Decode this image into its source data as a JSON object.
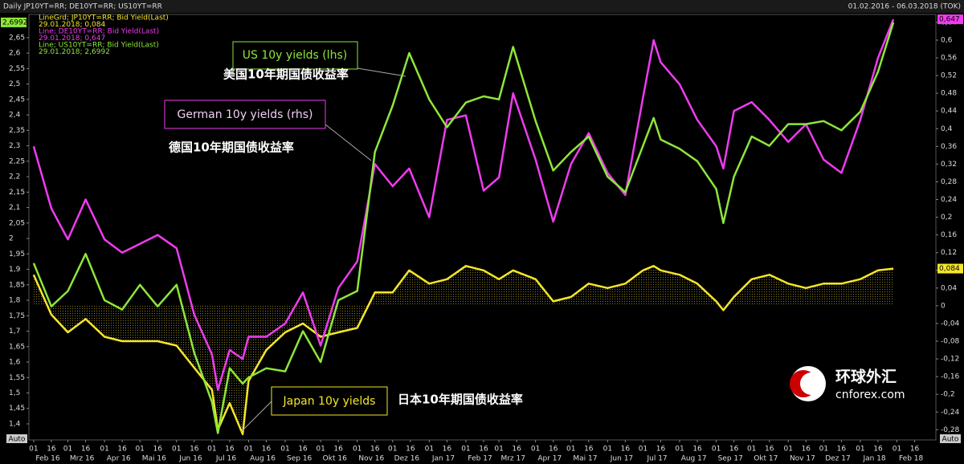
{
  "chart_data": {
    "type": "line",
    "title": "Daily JP10YT=RR; DE10YT=RR; US10YT=RR",
    "subtitle": "01.02.2016 - 06.03.2018 (TOK)",
    "x": [
      "2016-02-01",
      "2016-02-16",
      "2016-03-01",
      "2016-03-16",
      "2016-04-01",
      "2016-04-16",
      "2016-05-01",
      "2016-05-16",
      "2016-06-01",
      "2016-06-16",
      "2016-07-01",
      "2016-07-06",
      "2016-07-16",
      "2016-07-27",
      "2016-08-01",
      "2016-08-16",
      "2016-09-01",
      "2016-09-16",
      "2016-10-01",
      "2016-10-16",
      "2016-11-01",
      "2016-11-16",
      "2016-12-01",
      "2016-12-15",
      "2017-01-01",
      "2017-01-16",
      "2017-02-01",
      "2017-02-16",
      "2017-03-01",
      "2017-03-13",
      "2017-04-01",
      "2017-04-16",
      "2017-05-01",
      "2017-05-16",
      "2017-06-01",
      "2017-06-16",
      "2017-07-01",
      "2017-07-10",
      "2017-07-16",
      "2017-08-01",
      "2017-08-16",
      "2017-09-01",
      "2017-09-07",
      "2017-09-16",
      "2017-10-01",
      "2017-10-16",
      "2017-11-01",
      "2017-11-16",
      "2017-12-01",
      "2017-12-16",
      "2018-01-01",
      "2018-01-16",
      "2018-01-29"
    ],
    "xlim": [
      "2016-01-28",
      "2018-03-06"
    ],
    "xticks": [
      {
        "value": "2016-02-01",
        "label": "01"
      },
      {
        "value": "2016-02-16",
        "label": "16"
      },
      {
        "value": "2016-03-01",
        "label": "01"
      },
      {
        "value": "2016-03-16",
        "label": "16"
      },
      {
        "value": "2016-04-01",
        "label": "01"
      },
      {
        "value": "2016-04-16",
        "label": "16"
      },
      {
        "value": "2016-05-01",
        "label": "01"
      },
      {
        "value": "2016-05-16",
        "label": "16"
      },
      {
        "value": "2016-06-01",
        "label": "01"
      },
      {
        "value": "2016-06-16",
        "label": "16"
      },
      {
        "value": "2016-07-01",
        "label": "01"
      },
      {
        "value": "2016-07-16",
        "label": "16"
      },
      {
        "value": "2016-08-01",
        "label": "01"
      },
      {
        "value": "2016-08-16",
        "label": "16"
      },
      {
        "value": "2016-09-01",
        "label": "01"
      },
      {
        "value": "2016-09-16",
        "label": "16"
      },
      {
        "value": "2016-10-01",
        "label": "01"
      },
      {
        "value": "2016-10-16",
        "label": "16"
      },
      {
        "value": "2016-11-01",
        "label": "01"
      },
      {
        "value": "2016-11-16",
        "label": "16"
      },
      {
        "value": "2016-12-01",
        "label": "01"
      },
      {
        "value": "2016-12-16",
        "label": "16"
      },
      {
        "value": "2017-01-01",
        "label": "01"
      },
      {
        "value": "2017-01-16",
        "label": "16"
      },
      {
        "value": "2017-02-01",
        "label": "01"
      },
      {
        "value": "2017-02-16",
        "label": "16"
      },
      {
        "value": "2017-03-01",
        "label": "01"
      },
      {
        "value": "2017-03-16",
        "label": "16"
      },
      {
        "value": "2017-04-01",
        "label": "01"
      },
      {
        "value": "2017-04-16",
        "label": "16"
      },
      {
        "value": "2017-05-01",
        "label": "01"
      },
      {
        "value": "2017-05-16",
        "label": "16"
      },
      {
        "value": "2017-06-01",
        "label": "01"
      },
      {
        "value": "2017-06-16",
        "label": "16"
      },
      {
        "value": "2017-07-01",
        "label": "01"
      },
      {
        "value": "2017-07-16",
        "label": "16"
      },
      {
        "value": "2017-08-01",
        "label": "01"
      },
      {
        "value": "2017-08-16",
        "label": "16"
      },
      {
        "value": "2017-09-01",
        "label": "01"
      },
      {
        "value": "2017-09-16",
        "label": "16"
      },
      {
        "value": "2017-10-01",
        "label": "01"
      },
      {
        "value": "2017-10-16",
        "label": "16"
      },
      {
        "value": "2017-11-01",
        "label": "01"
      },
      {
        "value": "2017-11-16",
        "label": "16"
      },
      {
        "value": "2017-12-01",
        "label": "01"
      },
      {
        "value": "2017-12-16",
        "label": "16"
      },
      {
        "value": "2018-01-01",
        "label": "01"
      },
      {
        "value": "2018-01-16",
        "label": "16"
      },
      {
        "value": "2018-02-01",
        "label": "01"
      },
      {
        "value": "2018-02-16",
        "label": "16"
      }
    ],
    "month_labels": [
      {
        "value": "2016-02-13",
        "label": "Feb 16"
      },
      {
        "value": "2016-03-13",
        "label": "Mrz 16"
      },
      {
        "value": "2016-04-13",
        "label": "Apr 16"
      },
      {
        "value": "2016-05-13",
        "label": "Mai 16"
      },
      {
        "value": "2016-06-13",
        "label": "Jun 16"
      },
      {
        "value": "2016-07-13",
        "label": "Jul 16"
      },
      {
        "value": "2016-08-13",
        "label": "Aug 16"
      },
      {
        "value": "2016-09-13",
        "label": "Sep 16"
      },
      {
        "value": "2016-10-13",
        "label": "Okt 16"
      },
      {
        "value": "2016-11-13",
        "label": "Nov 16"
      },
      {
        "value": "2016-12-13",
        "label": "Dez 16"
      },
      {
        "value": "2017-01-13",
        "label": "Jan 17"
      },
      {
        "value": "2017-02-13",
        "label": "Feb 17"
      },
      {
        "value": "2017-03-13",
        "label": "Mrz 17"
      },
      {
        "value": "2017-04-13",
        "label": "Apr 17"
      },
      {
        "value": "2017-05-13",
        "label": "Mai 17"
      },
      {
        "value": "2017-06-13",
        "label": "Jun 17"
      },
      {
        "value": "2017-07-13",
        "label": "Jul 17"
      },
      {
        "value": "2017-08-13",
        "label": "Aug 17"
      },
      {
        "value": "2017-09-13",
        "label": "Sep 17"
      },
      {
        "value": "2017-10-13",
        "label": "Okt 17"
      },
      {
        "value": "2017-11-13",
        "label": "Nov 17"
      },
      {
        "value": "2017-12-13",
        "label": "Dez 17"
      },
      {
        "value": "2018-01-13",
        "label": "Jan 18"
      },
      {
        "value": "2018-02-13",
        "label": "Feb 18"
      }
    ],
    "ylim": [
      1.348,
      2.725
    ],
    "yticks": [
      {
        "value": 1.4,
        "label": "1,4"
      },
      {
        "value": 1.45,
        "label": "1,45"
      },
      {
        "value": 1.5,
        "label": "1,5"
      },
      {
        "value": 1.55,
        "label": "1,55"
      },
      {
        "value": 1.6,
        "label": "1,6"
      },
      {
        "value": 1.65,
        "label": "1,65"
      },
      {
        "value": 1.7,
        "label": "1,7"
      },
      {
        "value": 1.75,
        "label": "1,75"
      },
      {
        "value": 1.8,
        "label": "1,8"
      },
      {
        "value": 1.85,
        "label": "1,85"
      },
      {
        "value": 1.9,
        "label": "1,9"
      },
      {
        "value": 1.95,
        "label": "1,95"
      },
      2,
      {
        "value": 2.05,
        "label": "2,05"
      },
      {
        "value": 2.1,
        "label": "2,1"
      },
      {
        "value": 2.15,
        "label": "2,15"
      },
      {
        "value": 2.2,
        "label": "2,2"
      },
      {
        "value": 2.25,
        "label": "2,25"
      },
      {
        "value": 2.3,
        "label": "2,3"
      },
      {
        "value": 2.35,
        "label": "2,35"
      },
      {
        "value": 2.4,
        "label": "2,4"
      },
      {
        "value": 2.45,
        "label": "2,45"
      },
      {
        "value": 2.5,
        "label": "2,5"
      },
      {
        "value": 2.55,
        "label": "2,55"
      },
      {
        "value": 2.6,
        "label": "2,6"
      },
      {
        "value": 2.65,
        "label": "2,65"
      }
    ],
    "y2lim": [
      -0.303,
      0.658
    ],
    "y2ticks": [
      {
        "value": -0.28,
        "label": "-0,28"
      },
      {
        "value": -0.24,
        "label": "-0,24"
      },
      {
        "value": -0.2,
        "label": "-0,2"
      },
      {
        "value": -0.16,
        "label": "-0,16"
      },
      {
        "value": -0.12,
        "label": "-0,12"
      },
      {
        "value": -0.08,
        "label": "-0,08"
      },
      {
        "value": -0.04,
        "label": "-0,04"
      },
      0,
      {
        "value": 0.04,
        "label": "0,04"
      },
      {
        "value": 0.08,
        "label": "0,08"
      },
      {
        "value": 0.12,
        "label": "0,12"
      },
      {
        "value": 0.16,
        "label": "0,16"
      },
      {
        "value": 0.2,
        "label": "0,2"
      },
      {
        "value": 0.24,
        "label": "0,24"
      },
      {
        "value": 0.28,
        "label": "0,28"
      },
      {
        "value": 0.32,
        "label": "0,32"
      },
      {
        "value": 0.36,
        "label": "0,36"
      },
      {
        "value": 0.4,
        "label": "0,4"
      },
      {
        "value": 0.44,
        "label": "0,44"
      },
      {
        "value": 0.48,
        "label": "0,48"
      },
      {
        "value": 0.52,
        "label": "0,52"
      },
      {
        "value": 0.56,
        "label": "0,56"
      },
      {
        "value": 0.6,
        "label": "0,6"
      },
      {
        "value": 0.64,
        "label": "0,64"
      }
    ],
    "axis_mode_left": "Auto",
    "axis_mode_right": "Auto",
    "series": [
      {
        "name": "LineGrd; JP10YT=RR; Bid Yield(Last)",
        "legend_value": "29.01.2018; 0,084",
        "last_label": "0,084",
        "color": "#f5e62a",
        "axis": "y2",
        "fill": true,
        "values": [
          0.07,
          -0.02,
          -0.06,
          -0.03,
          -0.07,
          -0.08,
          -0.08,
          -0.08,
          -0.09,
          -0.14,
          -0.19,
          -0.28,
          -0.22,
          -0.29,
          -0.17,
          -0.1,
          -0.06,
          -0.04,
          -0.07,
          -0.06,
          -0.05,
          0.03,
          0.03,
          0.08,
          0.05,
          0.06,
          0.09,
          0.08,
          0.06,
          0.08,
          0.06,
          0.01,
          0.02,
          0.05,
          0.04,
          0.05,
          0.08,
          0.09,
          0.08,
          0.07,
          0.05,
          0.01,
          -0.01,
          0.02,
          0.06,
          0.07,
          0.05,
          0.04,
          0.05,
          0.05,
          0.06,
          0.08,
          0.084
        ]
      },
      {
        "name": "Line; DE10YT=RR; Bid Yield(Last)",
        "legend_value": "29.01.2018; 0,647",
        "last_label": "0,647",
        "color": "#ee3cee",
        "axis": "y2",
        "values": [
          0.36,
          0.22,
          0.15,
          0.24,
          0.15,
          0.12,
          0.14,
          0.16,
          0.13,
          -0.02,
          -0.11,
          -0.19,
          -0.1,
          -0.12,
          -0.07,
          -0.07,
          -0.04,
          0.03,
          -0.09,
          0.04,
          0.1,
          0.32,
          0.27,
          0.31,
          0.2,
          0.42,
          0.43,
          0.26,
          0.29,
          0.48,
          0.33,
          0.19,
          0.32,
          0.39,
          0.3,
          0.25,
          0.47,
          0.6,
          0.55,
          0.5,
          0.42,
          0.36,
          0.31,
          0.44,
          0.46,
          0.42,
          0.37,
          0.41,
          0.33,
          0.3,
          0.42,
          0.56,
          0.647
        ]
      },
      {
        "name": "Line; US10YT=RR; Bid Yield(Last)",
        "legend_value": "29.01.2018; 2,6992",
        "last_label": "2,6992",
        "color": "#8ee63a",
        "axis": "y",
        "values": [
          1.92,
          1.78,
          1.83,
          1.95,
          1.8,
          1.77,
          1.85,
          1.78,
          1.85,
          1.63,
          1.47,
          1.37,
          1.58,
          1.53,
          1.55,
          1.58,
          1.57,
          1.7,
          1.6,
          1.8,
          1.83,
          2.28,
          2.43,
          2.6,
          2.45,
          2.36,
          2.44,
          2.46,
          2.45,
          2.62,
          2.38,
          2.22,
          2.28,
          2.33,
          2.2,
          2.15,
          2.3,
          2.39,
          2.32,
          2.29,
          2.25,
          2.16,
          2.05,
          2.2,
          2.33,
          2.3,
          2.37,
          2.37,
          2.38,
          2.35,
          2.41,
          2.54,
          2.6992
        ]
      }
    ],
    "annotations": {
      "us_en": "US 10y yields (lhs)",
      "us_cn": "美国10年期国债收益率",
      "de_en": "German 10y yields (rhs)",
      "de_cn": "德国10年期国债收益率",
      "jp_en": "Japan 10y yields",
      "jp_cn": "日本10年期国债收益率"
    },
    "watermark": {
      "name": "环球外汇",
      "site": "cnforex.com"
    }
  }
}
